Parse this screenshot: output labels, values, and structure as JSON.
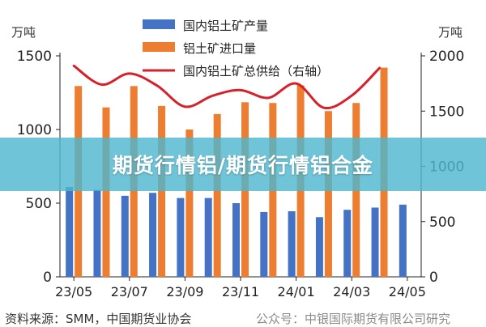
{
  "overlay": {
    "title": "期货行情铝/期货行情铝合金"
  },
  "footer": {
    "source": "资料来源：SMM，中国期货业协会",
    "watermark": "公众号：中银国际期货有限公司研究"
  },
  "colors": {
    "bar_production": "#4472c4",
    "bar_import": "#ed7d31",
    "line_supply": "#d6202a",
    "overlay_band": "#4fb7ce"
  },
  "chart_data": {
    "type": "bar",
    "title": "",
    "left_axis": {
      "unit": "万吨",
      "ylim": [
        0,
        1500
      ],
      "ticks": [
        "0",
        "500",
        "1000",
        "1500"
      ]
    },
    "right_axis": {
      "unit": "万吨",
      "ylim": [
        0,
        2000
      ],
      "ticks": [
        "0",
        "500",
        "1000",
        "1500",
        "2000"
      ]
    },
    "x_tick_labels": [
      "23/05",
      "23/07",
      "23/09",
      "23/11",
      "24/01",
      "24/03",
      "24/05"
    ],
    "categories": [
      "23/05",
      "23/06",
      "23/07",
      "23/08",
      "23/09",
      "23/10",
      "23/11",
      "23/12",
      "24/01",
      "24/02",
      "24/03",
      "24/04",
      "24/05"
    ],
    "legend_position": "top-center",
    "series": [
      {
        "name": "国内铝土矿产量",
        "type": "bar",
        "axis": "left",
        "values": [
          610,
          590,
          550,
          570,
          535,
          535,
          500,
          440,
          445,
          405,
          455,
          470,
          490
        ]
      },
      {
        "name": "铝土矿进口量",
        "type": "bar",
        "axis": "left",
        "values": [
          1295,
          1150,
          1295,
          1160,
          1000,
          1105,
          1185,
          1180,
          1300,
          1125,
          1180,
          1420,
          null
        ]
      },
      {
        "name": "国内铝土矿总供给（右轴）",
        "type": "line",
        "axis": "right",
        "values": [
          1910,
          1740,
          1840,
          1730,
          1540,
          1640,
          1690,
          1620,
          1750,
          1530,
          1640,
          1890,
          null
        ]
      }
    ]
  }
}
